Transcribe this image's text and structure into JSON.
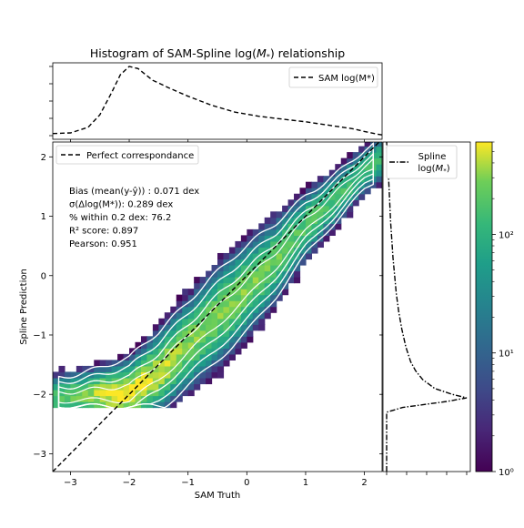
{
  "figure": {
    "title": "Histogram of SAM-Spline log(M*) relationship",
    "title_parts": {
      "prefix": "Histogram of SAM-Spline log(",
      "var": "M",
      "sub": "*",
      "suffix": ") relationship"
    }
  },
  "chart_data": [
    {
      "type": "heatmap",
      "role": "main-2d-histogram",
      "xlabel": "SAM Truth",
      "ylabel": "Spline Prediction",
      "xlim": [
        -3.3,
        2.3
      ],
      "ylim": [
        -3.3,
        2.25
      ],
      "xticks": [
        -3,
        -2,
        -1,
        0,
        1,
        2
      ],
      "yticks": [
        -3,
        -2,
        -1,
        0,
        1,
        2
      ],
      "colormap": "viridis",
      "color_scale": "log",
      "color_range": [
        1,
        600
      ],
      "ridge": {
        "x": [
          -3.3,
          -2.5,
          -2.0,
          -1.5,
          -1.0,
          -0.5,
          0.0,
          0.5,
          1.0,
          1.5,
          2.0,
          2.3
        ],
        "y": [
          -2.05,
          -2.0,
          -1.98,
          -1.62,
          -1.15,
          -0.68,
          -0.22,
          0.27,
          0.85,
          1.3,
          1.78,
          1.98
        ]
      },
      "reference_line": {
        "label": "Perfect correspondance",
        "style": "dashed",
        "slope": 1,
        "intercept": 0
      },
      "legend": {
        "position": "top-left",
        "entries": [
          "Perfect correspondance"
        ]
      },
      "stats": [
        "Bias (mean(y-ŷ)) : 0.071 dex",
        "σ(Δlog(M*)): 0.289 dex",
        "% within 0.2 dex:  76.2",
        "R² score:  0.897",
        "Pearson:  0.951"
      ],
      "contour_color": "#ffffff"
    },
    {
      "type": "line",
      "role": "top-marginal",
      "series": [
        {
          "name": "SAM log(M*)",
          "style": "dashed",
          "x": [
            -3.3,
            -3.0,
            -2.7,
            -2.5,
            -2.3,
            -2.15,
            -2.0,
            -1.85,
            -1.6,
            -1.3,
            -1.0,
            -0.6,
            -0.2,
            0.2,
            0.6,
            1.0,
            1.4,
            1.8,
            2.0,
            2.2,
            2.3
          ],
          "y": [
            0.03,
            0.04,
            0.12,
            0.3,
            0.62,
            0.88,
            1.0,
            0.97,
            0.8,
            0.68,
            0.57,
            0.44,
            0.34,
            0.28,
            0.24,
            0.2,
            0.15,
            0.1,
            0.06,
            0.025,
            0.01
          ]
        }
      ],
      "legend": {
        "position": "top-right",
        "entries": [
          "SAM log(M*)"
        ]
      }
    },
    {
      "type": "line",
      "role": "right-marginal",
      "series": [
        {
          "name": "Spline log(M*)",
          "style": "dashdot",
          "y": [
            -3.3,
            -2.4,
            -2.3,
            -2.22,
            -2.12,
            -2.06,
            -2.0,
            -1.9,
            -1.75,
            -1.6,
            -1.45,
            -1.2,
            -0.9,
            -0.6,
            -0.3,
            0.0,
            0.3,
            0.6,
            0.9,
            1.2,
            1.5,
            1.8,
            2.0,
            2.25
          ],
          "x": [
            0.0,
            0.0,
            0.0,
            0.2,
            0.75,
            1.0,
            0.82,
            0.6,
            0.45,
            0.36,
            0.3,
            0.24,
            0.19,
            0.15,
            0.12,
            0.1,
            0.08,
            0.065,
            0.05,
            0.04,
            0.03,
            0.018,
            0.01,
            0.0
          ]
        }
      ],
      "legend": {
        "position": "top-right",
        "entries": [
          "Spline log(M*)"
        ]
      }
    },
    {
      "type": "heatmap",
      "role": "colorbar",
      "scale": "log",
      "range": [
        1,
        600
      ],
      "ticks": [
        "10⁰",
        "10¹",
        "10²"
      ]
    }
  ]
}
